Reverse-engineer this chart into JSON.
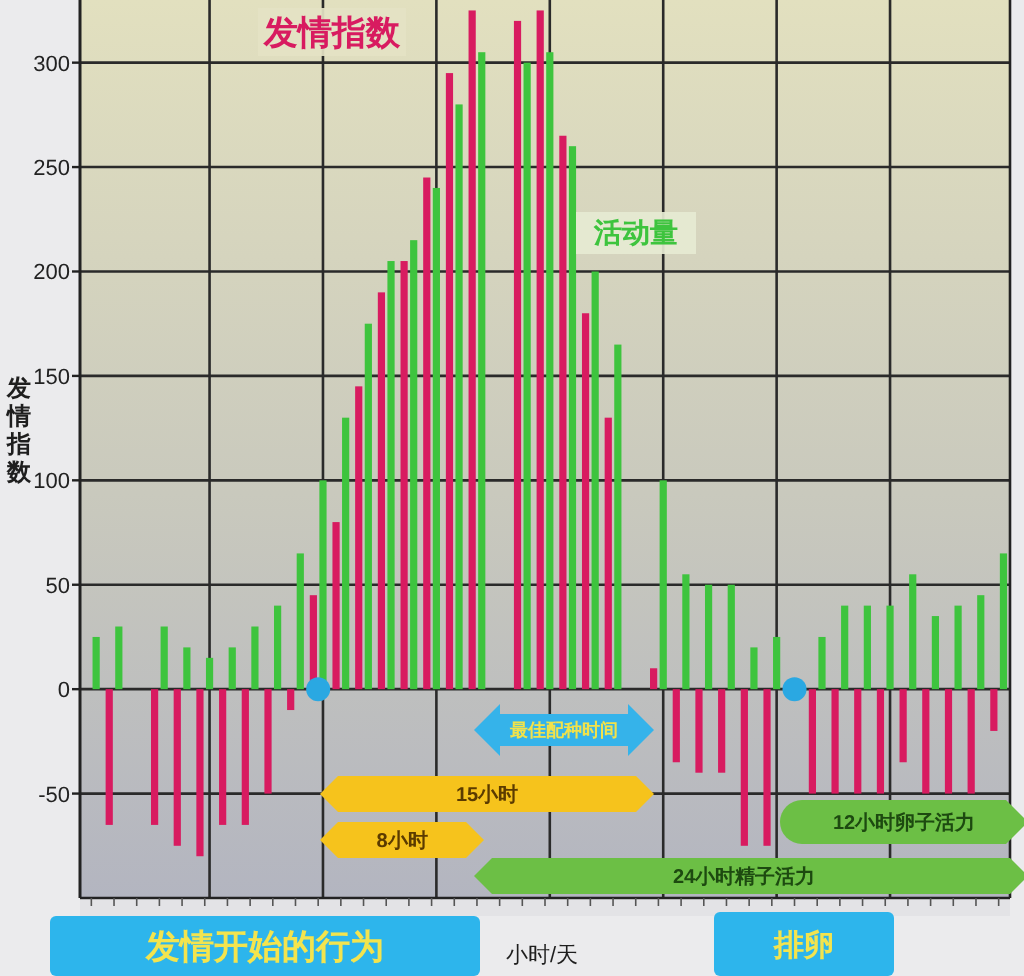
{
  "chart_data": {
    "type": "bar",
    "ylabel": "发情指数",
    "xlabel": "小时/天",
    "categories": [
      null,
      null,
      null,
      null,
      null,
      null,
      null,
      null,
      null,
      null,
      null,
      null,
      null,
      null,
      null,
      null,
      null,
      null,
      null,
      null,
      null,
      null,
      null,
      null,
      null,
      null,
      null,
      null,
      null,
      null,
      null,
      null,
      null,
      null,
      null,
      null,
      null,
      null,
      null,
      null,
      null
    ],
    "series": [
      {
        "name": "发情指数",
        "color": "#d81b60",
        "values": [
          null,
          -65,
          null,
          -65,
          -75,
          -80,
          -65,
          -65,
          -50,
          -10,
          45,
          80,
          145,
          190,
          205,
          245,
          295,
          325,
          null,
          320,
          325,
          265,
          180,
          130,
          null,
          10,
          -35,
          -40,
          -40,
          -75,
          -75,
          null,
          -50,
          -50,
          -50,
          -50,
          -35,
          -50,
          -50,
          -50,
          -20
        ]
      },
      {
        "name": "活动量",
        "color": "#3ec43e",
        "values": [
          25,
          30,
          null,
          30,
          20,
          15,
          20,
          30,
          40,
          65,
          100,
          130,
          175,
          205,
          215,
          240,
          280,
          305,
          null,
          300,
          305,
          260,
          200,
          165,
          null,
          100,
          55,
          50,
          50,
          20,
          25,
          null,
          25,
          40,
          40,
          40,
          55,
          35,
          40,
          45,
          65
        ]
      },
      {
        "type": "scatter",
        "color": "#2aa8e2",
        "values": [
          null,
          null,
          null,
          null,
          null,
          null,
          null,
          null,
          null,
          null,
          0,
          null,
          null,
          null,
          null,
          null,
          null,
          null,
          null,
          null,
          null,
          null,
          null,
          null,
          null,
          null,
          null,
          null,
          null,
          null,
          null,
          0,
          null,
          null,
          null,
          null,
          null,
          null,
          null,
          null,
          null
        ]
      }
    ],
    "ylim": [
      -100,
      330
    ],
    "yticks": [
      -50,
      0,
      50,
      100,
      150,
      200,
      250,
      300
    ],
    "grid": true,
    "marker": "circle",
    "annotations": [
      "最佳配种时间",
      "15小时",
      "8小时",
      "12小时卵子活力",
      "24小时精子活力",
      "发情开始的行为",
      "排卵"
    ]
  }
}
